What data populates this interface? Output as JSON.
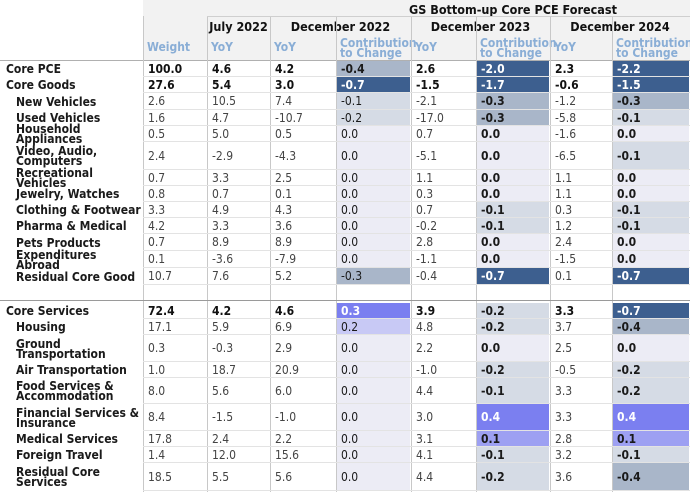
{
  "title": "GS Bottom-up Core PCE Forecast",
  "period_headers": [
    "July 2022",
    "December 2022",
    "December 2023",
    "December 2024"
  ],
  "column_labels": [
    "Weight",
    "YoY",
    "YoY",
    "Contribution to Change",
    "YoY",
    "Contribution to Change",
    "YoY",
    "Contribution to Change"
  ],
  "rows": [
    {
      "label": "Core PCE",
      "bold": true,
      "indent": false,
      "cells": [
        "100.0",
        "4.6",
        "4.2",
        "-0.4",
        "2.6",
        "-2.0",
        "2.3",
        "-2.2"
      ]
    },
    {
      "label": "Core Goods",
      "bold": true,
      "indent": false,
      "cells": [
        "27.6",
        "5.4",
        "3.0",
        "-0.7",
        "-1.5",
        "-1.7",
        "-0.6",
        "-1.5"
      ]
    },
    {
      "label": "New Vehicles",
      "bold": false,
      "indent": true,
      "cells": [
        "2.6",
        "10.5",
        "7.4",
        "-0.1",
        "-2.1",
        "-0.3",
        "-1.2",
        "-0.3"
      ]
    },
    {
      "label": "Used Vehicles",
      "bold": false,
      "indent": true,
      "cells": [
        "1.6",
        "4.7",
        "-10.7",
        "-0.2",
        "-17.0",
        "-0.3",
        "-5.8",
        "-0.1"
      ]
    },
    {
      "label": "Household Appliances",
      "bold": false,
      "indent": true,
      "cells": [
        "0.5",
        "5.0",
        "0.5",
        "0.0",
        "0.7",
        "0.0",
        "-1.6",
        "0.0"
      ]
    },
    {
      "label": "Video, Audio, Computers",
      "bold": false,
      "indent": true,
      "cells": [
        "2.4",
        "-2.9",
        "-4.3",
        "0.0",
        "-5.1",
        "0.0",
        "-6.5",
        "-0.1"
      ]
    },
    {
      "label": "Recreational Vehicles",
      "bold": false,
      "indent": true,
      "cells": [
        "0.7",
        "3.3",
        "2.5",
        "0.0",
        "1.1",
        "0.0",
        "1.1",
        "0.0"
      ]
    },
    {
      "label": "Jewelry, Watches",
      "bold": false,
      "indent": true,
      "cells": [
        "0.8",
        "0.7",
        "0.1",
        "0.0",
        "0.3",
        "0.0",
        "1.1",
        "0.0"
      ]
    },
    {
      "label": "Clothing & Footwear",
      "bold": false,
      "indent": true,
      "cells": [
        "3.3",
        "4.9",
        "4.3",
        "0.0",
        "0.7",
        "-0.1",
        "0.3",
        "-0.1"
      ]
    },
    {
      "label": "Pharma & Medical",
      "bold": false,
      "indent": true,
      "cells": [
        "4.2",
        "3.3",
        "3.6",
        "0.0",
        "-0.2",
        "-0.1",
        "1.2",
        "-0.1"
      ]
    },
    {
      "label": "Pets Products",
      "bold": false,
      "indent": true,
      "cells": [
        "0.7",
        "8.9",
        "8.9",
        "0.0",
        "2.8",
        "0.0",
        "2.4",
        "0.0"
      ]
    },
    {
      "label": "Expenditures Abroad",
      "bold": false,
      "indent": true,
      "cells": [
        "0.1",
        "-3.6",
        "-7.9",
        "0.0",
        "-1.1",
        "0.0",
        "-1.5",
        "0.0"
      ]
    },
    {
      "label": "Residual Core Good",
      "bold": false,
      "indent": true,
      "cells": [
        "10.7",
        "7.6",
        "5.2",
        "-0.3",
        "-0.4",
        "-0.7",
        "0.1",
        "-0.7"
      ]
    },
    {
      "label": "Core Services",
      "bold": true,
      "indent": false,
      "cells": [
        "72.4",
        "4.2",
        "4.6",
        "0.3",
        "3.9",
        "-0.2",
        "3.3",
        "-0.7"
      ]
    },
    {
      "label": "Housing",
      "bold": false,
      "indent": true,
      "cells": [
        "17.1",
        "5.9",
        "6.9",
        "0.2",
        "4.8",
        "-0.2",
        "3.7",
        "-0.4"
      ]
    },
    {
      "label": "Ground Transportation",
      "bold": false,
      "indent": true,
      "cells": [
        "0.3",
        "-0.3",
        "2.9",
        "0.0",
        "2.2",
        "0.0",
        "2.5",
        "0.0"
      ]
    },
    {
      "label": "Air Transportation",
      "bold": false,
      "indent": true,
      "cells": [
        "1.0",
        "18.7",
        "20.9",
        "0.0",
        "-1.0",
        "-0.2",
        "-0.5",
        "-0.2"
      ]
    },
    {
      "label": "Food Services & Accommodation",
      "bold": false,
      "indent": true,
      "cells": [
        "8.0",
        "5.6",
        "6.0",
        "0.0",
        "4.4",
        "-0.1",
        "3.3",
        "-0.2"
      ]
    },
    {
      "label": "Financial Services & Insurance",
      "bold": false,
      "indent": true,
      "cells": [
        "8.4",
        "-1.5",
        "-1.0",
        "0.0",
        "3.0",
        "0.4",
        "3.3",
        "0.4"
      ]
    },
    {
      "label": "Medical Services",
      "bold": false,
      "indent": true,
      "cells": [
        "17.8",
        "2.4",
        "2.2",
        "0.0",
        "3.1",
        "0.1",
        "2.8",
        "0.1"
      ]
    },
    {
      "label": "Foreign Travel",
      "bold": false,
      "indent": true,
      "cells": [
        "1.4",
        "12.0",
        "15.6",
        "0.0",
        "4.1",
        "-0.1",
        "3.2",
        "-0.1"
      ]
    },
    {
      "label": "Residual Core Services",
      "bold": false,
      "indent": true,
      "cells": [
        "18.5",
        "5.5",
        "5.6",
        "0.0",
        "4.4",
        "-0.2",
        "3.6",
        "-0.4"
      ]
    }
  ],
  "colors": {
    "neg_strong": "#3d5f8f",
    "neg_mid": "#a9b6c9",
    "neg_light": "#d5dbe5",
    "neutral": "#ececf5",
    "pos_light": "#c8c9f5",
    "pos_mid": "#9da0f2",
    "pos_strong": "#7b7ff0",
    "header_bg": "#f2f2f2",
    "sub_text": "#8aaed6"
  }
}
